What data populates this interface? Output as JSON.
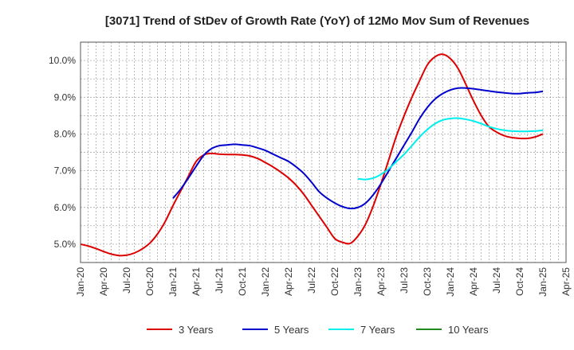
{
  "chart_data": {
    "type": "line",
    "title": "[3071]  Trend of StDev of Growth Rate (YoY) of 12Mo Mov Sum of Revenues",
    "xlabel": "",
    "ylabel": "",
    "x_ticks": [
      "Jan-20",
      "Apr-20",
      "Jul-20",
      "Oct-20",
      "Jan-21",
      "Apr-21",
      "Jul-21",
      "Oct-21",
      "Jan-22",
      "Apr-22",
      "Jul-22",
      "Oct-22",
      "Jan-23",
      "Apr-23",
      "Jul-23",
      "Oct-23",
      "Jan-24",
      "Apr-24",
      "Jul-24",
      "Oct-24",
      "Jan-25",
      "Apr-25"
    ],
    "xlim": [
      0,
      63
    ],
    "ylim": [
      4.5,
      10.5
    ],
    "y_ticks": [
      5.0,
      6.0,
      7.0,
      8.0,
      9.0,
      10.0
    ],
    "y_tick_labels": [
      "5.0%",
      "6.0%",
      "7.0%",
      "8.0%",
      "9.0%",
      "10.0%"
    ],
    "grid": true,
    "legend_position": "bottom",
    "series": [
      {
        "name": "3 Years",
        "color": "#dd0000",
        "x": [
          0,
          1,
          2,
          3,
          4,
          5,
          6,
          7,
          8,
          9,
          10,
          11,
          12,
          13,
          14,
          15,
          16,
          17,
          18,
          19,
          20,
          21,
          22,
          23,
          24,
          25,
          26,
          27,
          28,
          29,
          30,
          31,
          32,
          33,
          34,
          35,
          36,
          37,
          38,
          39,
          40,
          41,
          42,
          43,
          44,
          45,
          46,
          47,
          48,
          49,
          50,
          51,
          52,
          53,
          54,
          55,
          56,
          57,
          58,
          59,
          60
        ],
        "values": [
          5.0,
          4.95,
          4.88,
          4.8,
          4.73,
          4.69,
          4.7,
          4.76,
          4.87,
          5.03,
          5.28,
          5.62,
          6.05,
          6.45,
          6.85,
          7.25,
          7.43,
          7.47,
          7.45,
          7.44,
          7.44,
          7.43,
          7.4,
          7.33,
          7.22,
          7.1,
          6.96,
          6.8,
          6.6,
          6.35,
          6.05,
          5.75,
          5.45,
          5.15,
          5.05,
          5.02,
          5.22,
          5.55,
          6.05,
          6.65,
          7.3,
          7.95,
          8.5,
          9.0,
          9.45,
          9.88,
          10.1,
          10.17,
          10.05,
          9.78,
          9.35,
          8.9,
          8.5,
          8.2,
          8.05,
          7.95,
          7.9,
          7.88,
          7.88,
          7.92,
          8.0
        ]
      },
      {
        "name": "5 Years",
        "color": "#0000cc",
        "x": [
          12,
          13,
          14,
          15,
          16,
          17,
          18,
          19,
          20,
          21,
          22,
          23,
          24,
          25,
          26,
          27,
          28,
          29,
          30,
          31,
          32,
          33,
          34,
          35,
          36,
          37,
          38,
          39,
          40,
          41,
          42,
          43,
          44,
          45,
          46,
          47,
          48,
          49,
          50,
          51,
          52,
          53,
          54,
          55,
          56,
          57,
          58,
          59,
          60
        ],
        "values": [
          6.25,
          6.5,
          6.8,
          7.12,
          7.42,
          7.6,
          7.68,
          7.7,
          7.72,
          7.7,
          7.68,
          7.62,
          7.55,
          7.45,
          7.35,
          7.25,
          7.1,
          6.92,
          6.68,
          6.42,
          6.25,
          6.12,
          6.02,
          5.97,
          6.0,
          6.12,
          6.35,
          6.65,
          7.0,
          7.35,
          7.7,
          8.05,
          8.42,
          8.72,
          8.95,
          9.1,
          9.2,
          9.25,
          9.25,
          9.23,
          9.2,
          9.17,
          9.14,
          9.12,
          9.1,
          9.1,
          9.12,
          9.13,
          9.16
        ]
      },
      {
        "name": "7 Years",
        "color": "#00eeee",
        "x": [
          36,
          37,
          38,
          39,
          40,
          41,
          42,
          43,
          44,
          45,
          46,
          47,
          48,
          49,
          50,
          51,
          52,
          53,
          54,
          55,
          56,
          57,
          58,
          59,
          60
        ],
        "values": [
          6.78,
          6.76,
          6.8,
          6.9,
          7.05,
          7.25,
          7.45,
          7.68,
          7.92,
          8.12,
          8.28,
          8.38,
          8.42,
          8.43,
          8.4,
          8.35,
          8.28,
          8.2,
          8.14,
          8.1,
          8.08,
          8.07,
          8.07,
          8.08,
          8.1
        ]
      },
      {
        "name": "10 Years",
        "color": "#228822",
        "x": [],
        "values": []
      }
    ]
  }
}
